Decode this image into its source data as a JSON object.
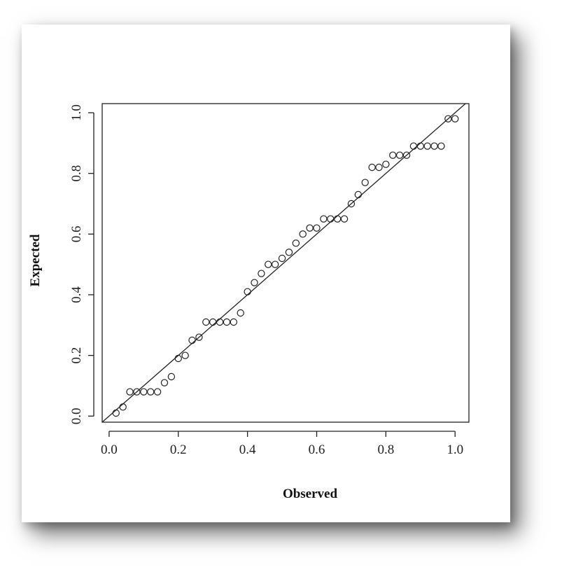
{
  "chart_data": {
    "type": "scatter",
    "title": "",
    "xlabel": "Observed",
    "ylabel": "Expected",
    "xlim": [
      -0.02,
      1.04
    ],
    "ylim": [
      -0.02,
      1.03
    ],
    "xticks": [
      "0.0",
      "0.2",
      "0.4",
      "0.6",
      "0.8",
      "1.0"
    ],
    "yticks": [
      "0.0",
      "0.2",
      "0.4",
      "0.6",
      "0.8",
      "1.0"
    ],
    "grid": false,
    "legend": "none",
    "reference_line": {
      "intercept": 0,
      "slope": 1
    },
    "series": [
      {
        "x": [
          0.02,
          0.04,
          0.06,
          0.08,
          0.1,
          0.12,
          0.14,
          0.16,
          0.18,
          0.2,
          0.22,
          0.24,
          0.26,
          0.28,
          0.3,
          0.32,
          0.34,
          0.36,
          0.38,
          0.4,
          0.42,
          0.44,
          0.46,
          0.48,
          0.5,
          0.52,
          0.54,
          0.56,
          0.58,
          0.6,
          0.62,
          0.64,
          0.66,
          0.68,
          0.7,
          0.72,
          0.74,
          0.76,
          0.78,
          0.8,
          0.82,
          0.84,
          0.86,
          0.88,
          0.9,
          0.92,
          0.94,
          0.96,
          0.98,
          1.0
        ],
        "y": [
          0.01,
          0.03,
          0.08,
          0.08,
          0.08,
          0.08,
          0.08,
          0.11,
          0.13,
          0.19,
          0.2,
          0.25,
          0.26,
          0.31,
          0.31,
          0.31,
          0.31,
          0.31,
          0.34,
          0.41,
          0.44,
          0.47,
          0.5,
          0.5,
          0.52,
          0.54,
          0.57,
          0.6,
          0.62,
          0.62,
          0.65,
          0.65,
          0.65,
          0.65,
          0.7,
          0.73,
          0.77,
          0.82,
          0.82,
          0.83,
          0.86,
          0.86,
          0.86,
          0.89,
          0.89,
          0.89,
          0.89,
          0.89,
          0.98,
          0.98
        ]
      }
    ]
  }
}
